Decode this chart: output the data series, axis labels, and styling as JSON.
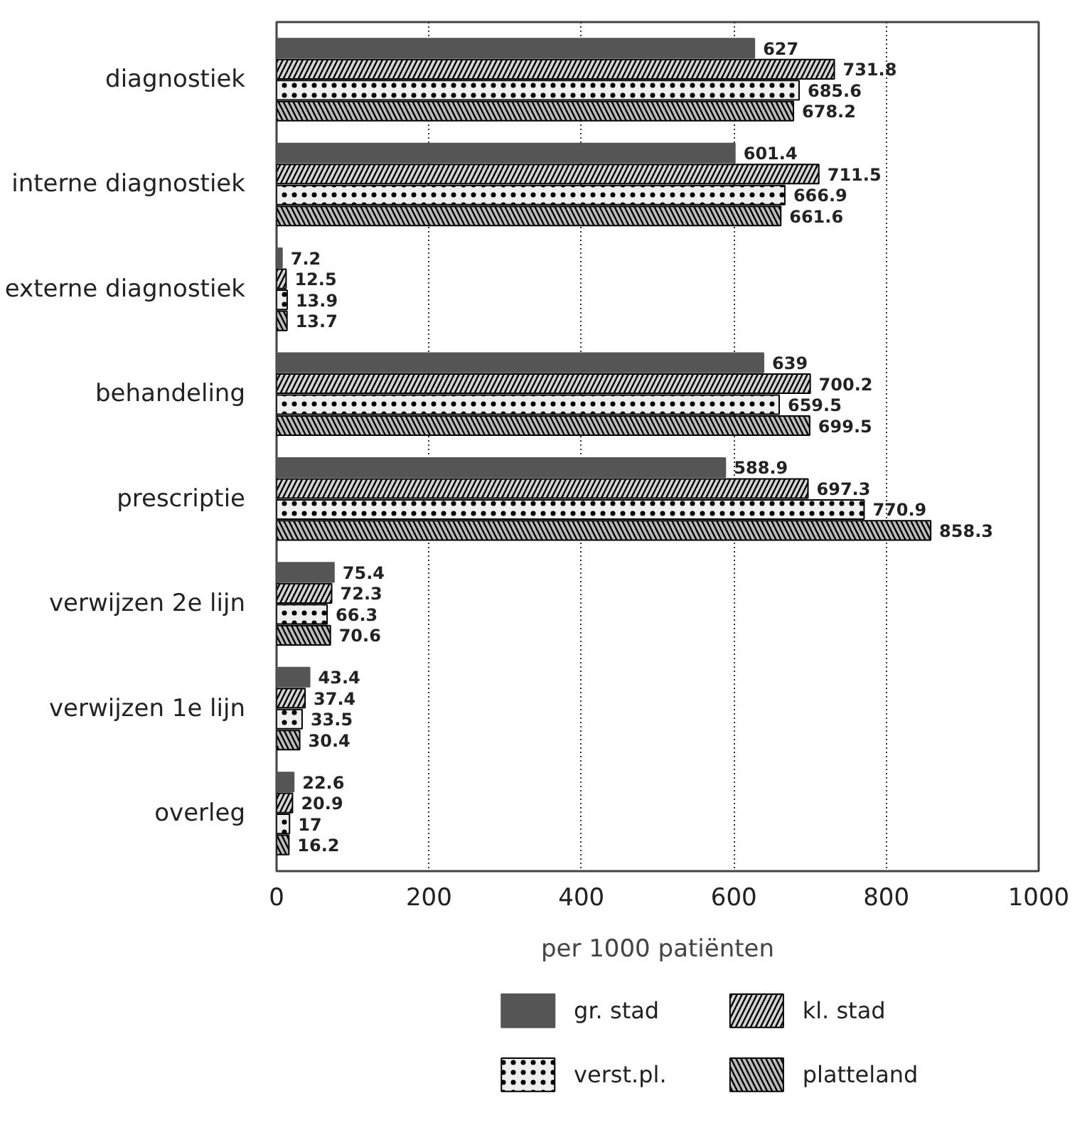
{
  "chart_data": {
    "type": "bar",
    "orientation": "horizontal",
    "xlabel": "per 1000 patiënten",
    "categories": [
      "diagnostiek",
      "interne diagnostiek",
      "externe diagnostiek",
      "behandeling",
      "prescriptie",
      "verwijzen 2e lijn",
      "verwijzen 1e lijn",
      "overleg"
    ],
    "series": [
      {
        "name": "gr. stad",
        "color": "#555555",
        "values": [
          627,
          601.4,
          7.2,
          639,
          588.9,
          75.4,
          43.4,
          22.6
        ]
      },
      {
        "name": "kl. stad",
        "color": "#d4d4d4",
        "values": [
          731.8,
          711.5,
          12.5,
          700.2,
          697.3,
          72.3,
          37.4,
          20.9
        ]
      },
      {
        "name": "verst.pl.",
        "color": "#eeeeee",
        "values": [
          685.6,
          666.9,
          13.9,
          659.5,
          770.9,
          66.3,
          33.5,
          17
        ]
      },
      {
        "name": "platteland",
        "color": "#bbbbbb",
        "values": [
          678.2,
          661.6,
          13.7,
          699.5,
          858.3,
          70.6,
          30.4,
          16.2
        ]
      }
    ],
    "xlim": [
      0,
      1000
    ],
    "xticks": [
      0,
      200,
      400,
      600,
      800,
      1000
    ],
    "grid": "x",
    "legend": "bottom",
    "data_labels": true
  }
}
